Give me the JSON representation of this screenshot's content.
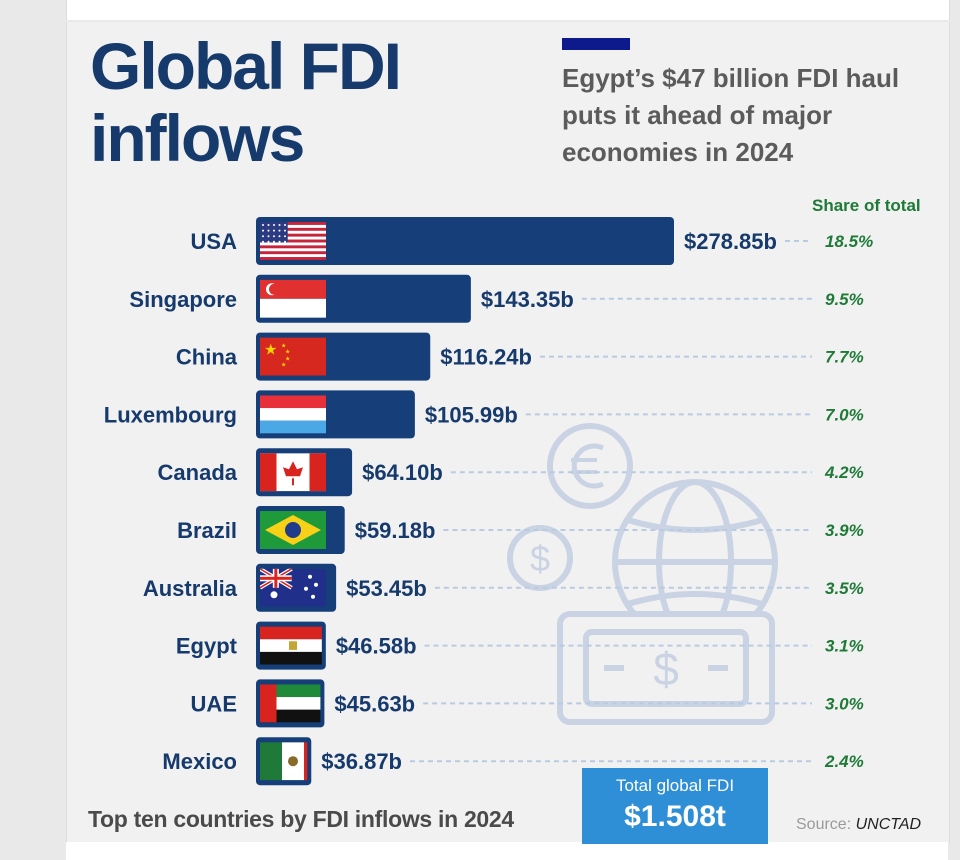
{
  "header": {
    "title": "Global FDI\ninflows",
    "subtitle": "Egypt’s $47 billion FDI haul puts it ahead of major economies in 2024"
  },
  "chart_data": {
    "type": "bar",
    "orientation": "horizontal",
    "share_header": "Share of total",
    "categories": [
      "USA",
      "Singapore",
      "China",
      "Luxembourg",
      "Canada",
      "Brazil",
      "Australia",
      "Egypt",
      "UAE",
      "Mexico"
    ],
    "values": [
      278.85,
      143.35,
      116.24,
      105.99,
      64.1,
      59.18,
      53.45,
      46.58,
      45.63,
      36.87
    ],
    "value_labels": [
      "$278.85b",
      "$143.35b",
      "$116.24b",
      "$105.99b",
      "$64.10b",
      "$59.18b",
      "$53.45b",
      "$46.58b",
      "$45.63b",
      "$36.87b"
    ],
    "shares": [
      "18.5%",
      "9.5%",
      "7.7%",
      "7.0%",
      "4.2%",
      "3.9%",
      "3.5%",
      "3.1%",
      "3.0%",
      "2.4%"
    ],
    "flags": [
      "usa",
      "singapore",
      "china",
      "luxembourg",
      "canada",
      "brazil",
      "australia",
      "egypt",
      "uae",
      "mexico"
    ],
    "unit": "USD billions",
    "bar_color": "#163f7a",
    "share_color": "#1f7a38"
  },
  "footer": {
    "chart_caption": "Top ten countries by FDI inflows in 2024",
    "total_label": "Total global FDI",
    "total_value": "$1.508t",
    "source_label": "Source:",
    "source_name": "UNCTAD"
  },
  "colors": {
    "title": "#163a6b",
    "subtitle": "#5b5b5b",
    "accent": "#0d1a8c",
    "total_box": "#2f8fd6",
    "background": "#f1f1f1"
  }
}
